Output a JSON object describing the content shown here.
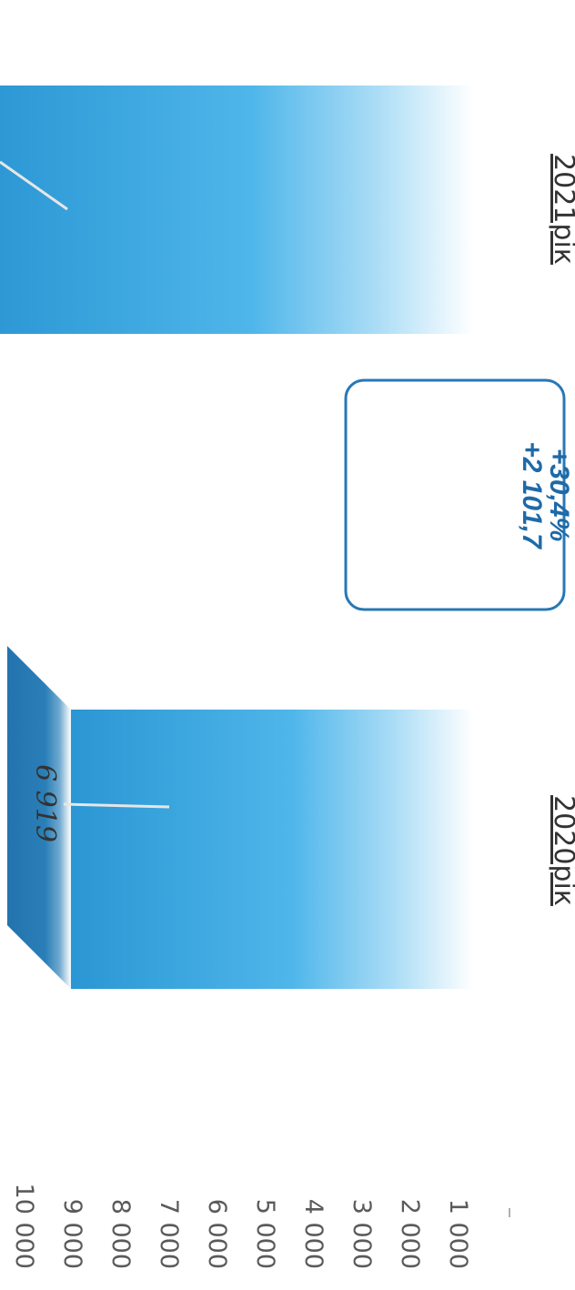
{
  "chart_data": {
    "type": "bar",
    "categories": [
      "2020рік",
      "2021рік"
    ],
    "values": [
      6919,
      9020.7
    ],
    "value_labels": [
      "6 919",
      ""
    ],
    "change_box": {
      "percent": "+30,4%",
      "absolute": "+2 101,7"
    },
    "y_ticks": [
      "10 000",
      "9 000",
      "8 000",
      "7 000",
      "6 000",
      "5 000",
      "4 000",
      "3 000",
      "2 000",
      "1 000"
    ],
    "ylim": [
      0,
      10000
    ],
    "title": "",
    "xlabel": "",
    "ylabel": "",
    "orientation": "rotated 90° clockwise",
    "colors": {
      "bar_front": "#2c9ad6",
      "bar_side": "#2479b0",
      "box_border": "#2878b5",
      "box_text": "#1e6aa8",
      "leader": "#c8c8c8"
    }
  }
}
